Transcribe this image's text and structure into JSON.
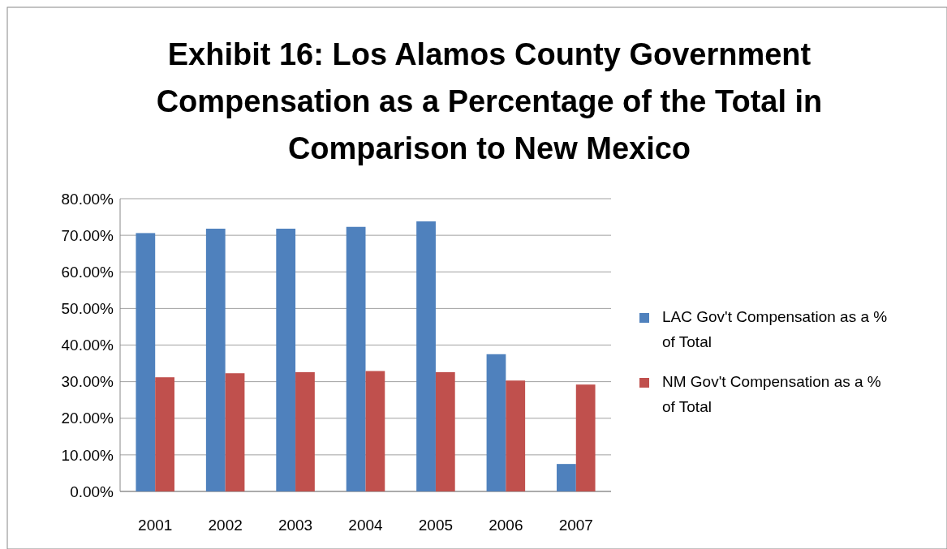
{
  "chart_data": {
    "type": "bar",
    "title": "Exhibit 16: Los Alamos County Government Compensation as a Percentage of the Total in Comparison to New Mexico",
    "categories": [
      "2001",
      "2002",
      "2003",
      "2004",
      "2005",
      "2006",
      "2007"
    ],
    "series": [
      {
        "name": "LAC Gov't Compensation as a % of Total",
        "color": "#4f81bd",
        "values": [
          70.6,
          71.8,
          71.8,
          72.3,
          73.8,
          37.5,
          7.5
        ]
      },
      {
        "name": "NM Gov't Compensation as a % of Total",
        "color": "#c0504d",
        "values": [
          31.2,
          32.3,
          32.6,
          32.9,
          32.6,
          30.3,
          29.2
        ]
      }
    ],
    "ylim": [
      0,
      80
    ],
    "yticks": [
      {
        "value": 0,
        "label": "0.00%"
      },
      {
        "value": 10,
        "label": "10.00%"
      },
      {
        "value": 20,
        "label": "20.00%"
      },
      {
        "value": 30,
        "label": "30.00%"
      },
      {
        "value": 40,
        "label": "40.00%"
      },
      {
        "value": 50,
        "label": "50.00%"
      },
      {
        "value": 60,
        "label": "60.00%"
      },
      {
        "value": 70,
        "label": "70.00%"
      },
      {
        "value": 80,
        "label": "80.00%"
      }
    ],
    "grid": "y",
    "legend": "right"
  }
}
